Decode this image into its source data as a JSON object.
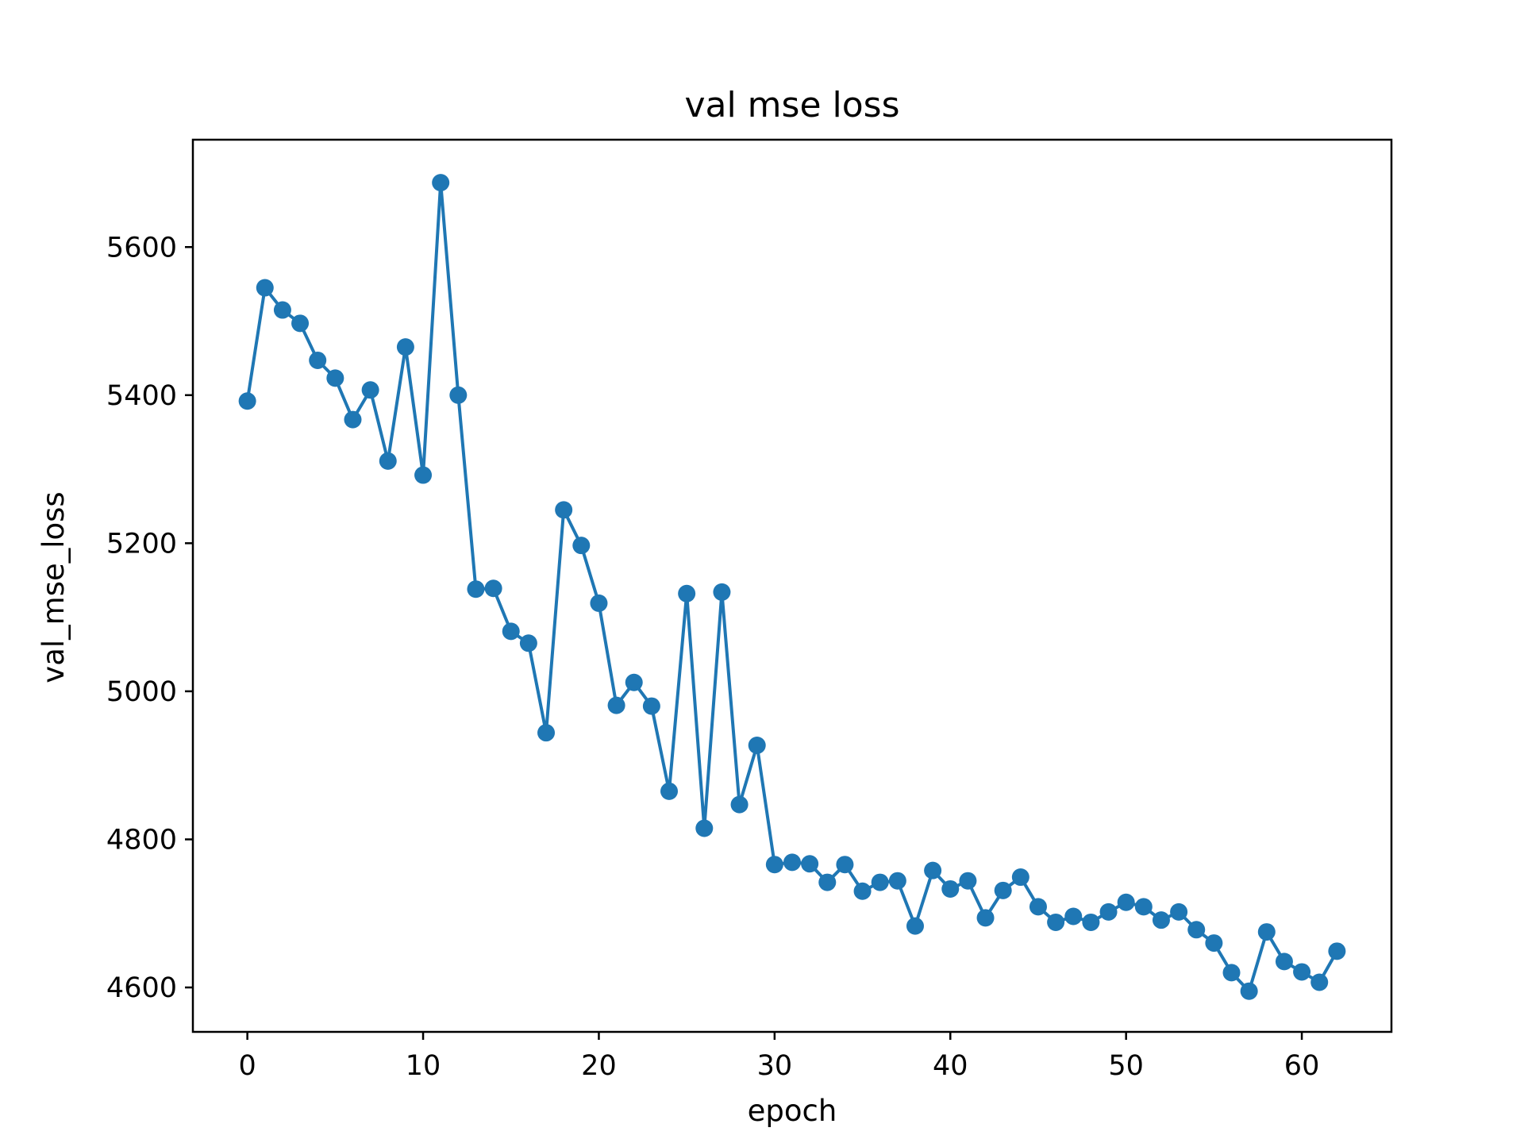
{
  "chart_data": {
    "type": "line",
    "title": "val mse loss",
    "xlabel": "epoch",
    "ylabel": "val_mse_loss",
    "xlim": [
      -3.1,
      65.1
    ],
    "ylim": [
      4540,
      5745
    ],
    "xticks": [
      0,
      10,
      20,
      30,
      40,
      50,
      60
    ],
    "yticks": [
      4600,
      4800,
      5000,
      5200,
      5400,
      5600
    ],
    "grid": false,
    "marker": "circle",
    "line_color": "#1f77b4",
    "series": [
      {
        "x": [
          0,
          1,
          2,
          3,
          4,
          5,
          6,
          7,
          8,
          9,
          10,
          11,
          12,
          13,
          14,
          15,
          16,
          17,
          18,
          19,
          20,
          21,
          22,
          23,
          24,
          25,
          26,
          27,
          28,
          29,
          30,
          31,
          32,
          33,
          34,
          35,
          36,
          37,
          38,
          39,
          40,
          41,
          42,
          43,
          44,
          45,
          46,
          47,
          48,
          49,
          50,
          51,
          52,
          53,
          54,
          55,
          56,
          57,
          58,
          59,
          60,
          61,
          62
        ],
        "y": [
          5392,
          5545,
          5515,
          5497,
          5447,
          5423,
          5367,
          5407,
          5311,
          5465,
          5292,
          5687,
          5400,
          5138,
          5139,
          5081,
          5065,
          4944,
          5245,
          5197,
          5119,
          4981,
          5012,
          4980,
          4865,
          5132,
          4815,
          5134,
          4847,
          4927,
          4766,
          4769,
          4767,
          4742,
          4766,
          4730,
          4742,
          4744,
          4683,
          4758,
          4733,
          4744,
          4694,
          4731,
          4749,
          4709,
          4688,
          4696,
          4688,
          4702,
          4715,
          4709,
          4691,
          4702,
          4678,
          4660,
          4620,
          4595,
          4675,
          4635,
          4621,
          4607,
          4649
        ]
      }
    ]
  }
}
